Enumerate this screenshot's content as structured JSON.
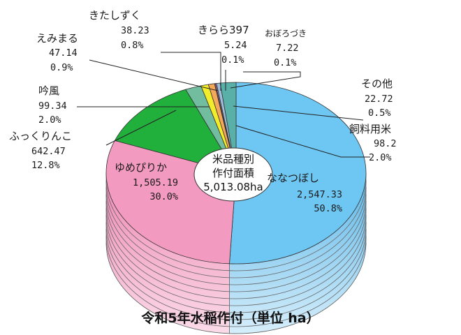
{
  "chart_data": {
    "type": "pie",
    "title": "令和5年水稲作付（単位 ha）",
    "center_label": [
      "米品種別",
      "作付面積",
      "5,013.08ha"
    ],
    "slices": [
      {
        "name": "ななつぼし",
        "value": "2,547.33",
        "percent": "50.8%",
        "v": 2547.33,
        "color": "#6ec6f2"
      },
      {
        "name": "ゆめぴりか",
        "value": "1,505.19",
        "percent": "30.0%",
        "v": 1505.19,
        "color": "#f39ac0"
      },
      {
        "name": "ふっくりんこ",
        "value": "642.47",
        "percent": "12.8%",
        "v": 642.47,
        "color": "#22b03c"
      },
      {
        "name": "吟風",
        "value": "99.34",
        "percent": "2.0%",
        "v": 99.34,
        "color": "#72bca0"
      },
      {
        "name": "えみまる",
        "value": "47.14",
        "percent": "0.9%",
        "v": 47.14,
        "color": "#f2ec2a"
      },
      {
        "name": "きたしずく",
        "value": "38.23",
        "percent": "0.8%",
        "v": 38.23,
        "color": "#f6a85a"
      },
      {
        "name": "きらら397",
        "value": "5.24",
        "percent": "0.1%",
        "v": 5.24,
        "color": "#e07070"
      },
      {
        "name": "おぼろづき",
        "value": "7.22",
        "percent": "0.1%",
        "v": 7.22,
        "color": "#b088c8"
      },
      {
        "name": "その他",
        "value": "22.72",
        "percent": "0.5%",
        "v": 22.72,
        "color": "#9fbcd8"
      },
      {
        "name": "飼料用米",
        "value": "98.2",
        "percent": "2.0%",
        "v": 98.2,
        "color": "#58b0a8"
      }
    ]
  }
}
